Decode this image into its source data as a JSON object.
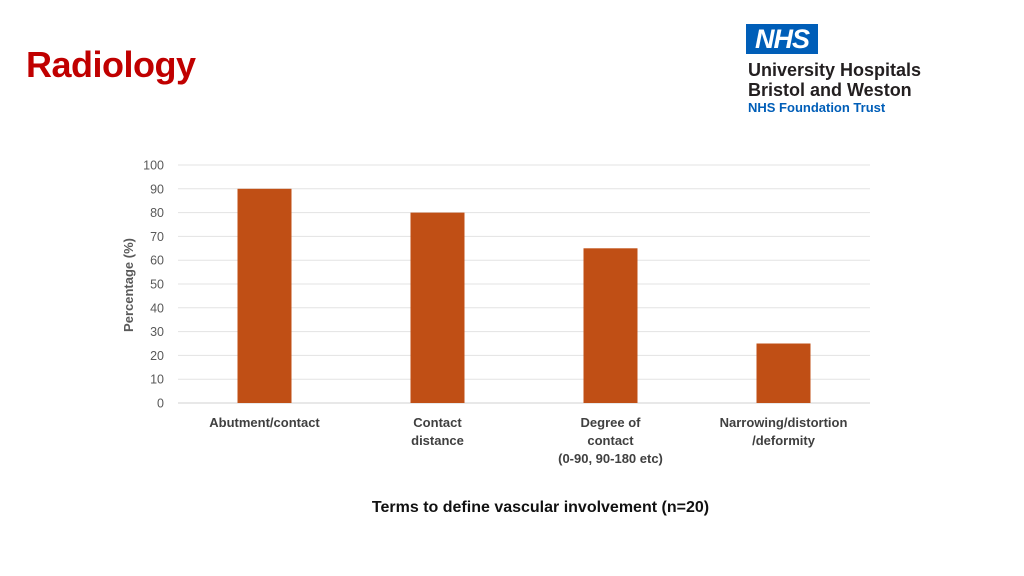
{
  "slide": {
    "title": "Radiology"
  },
  "logo": {
    "badge": "NHS",
    "org_line1": "University Hospitals",
    "org_line2": "Bristol and Weston",
    "trust": "NHS Foundation Trust",
    "badge_color": "#005eb8"
  },
  "chart_data": {
    "type": "bar",
    "categories": [
      [
        "Abutment/contact"
      ],
      [
        "Contact",
        "distance"
      ],
      [
        "Degree of",
        "contact",
        "(0-90, 90-180 etc)"
      ],
      [
        "Narrowing/distortion",
        "/deformity"
      ]
    ],
    "values": [
      90,
      80,
      65,
      25
    ],
    "ylabel": "Percentage (%)",
    "xlabel": "Terms to define vascular involvement (n=20)",
    "ylim": [
      0,
      100
    ],
    "yticks": [
      0,
      10,
      20,
      30,
      40,
      50,
      60,
      70,
      80,
      90,
      100
    ],
    "grid": true,
    "legend": "none",
    "bar_color": "#c0504d",
    "bar_color_actual": "#c04f15"
  }
}
